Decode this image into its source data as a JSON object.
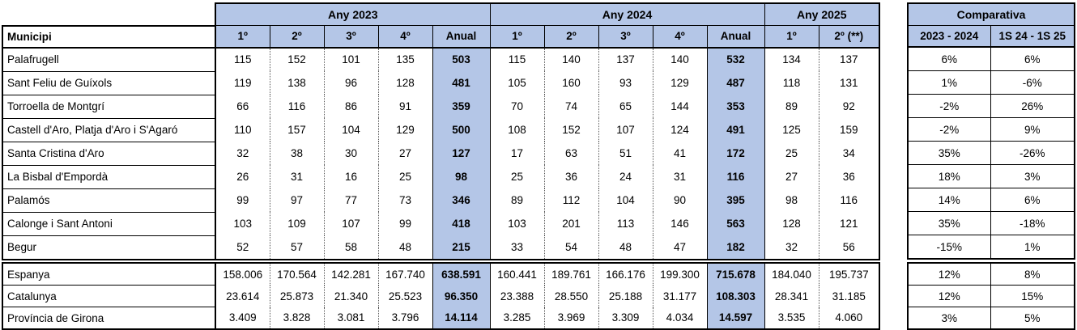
{
  "colors": {
    "header_bg": "#b4c6e7",
    "border": "#000000"
  },
  "header": {
    "municipi_label": "Municipi",
    "groups": [
      {
        "label": "Any 2023",
        "cols": [
          "1º",
          "2º",
          "3º",
          "4º",
          "Anual"
        ]
      },
      {
        "label": "Any 2024",
        "cols": [
          "1º",
          "2º",
          "3º",
          "4º",
          "Anual"
        ]
      },
      {
        "label": "Any 2025",
        "cols": [
          "1º",
          "2º (**)"
        ]
      }
    ],
    "comparativa": {
      "label": "Comparativa",
      "cols": [
        "2023 - 2024",
        "1S 24 - 1S 25"
      ]
    }
  },
  "municipalities": [
    {
      "name": "Palafrugell",
      "y2023": [
        "115",
        "152",
        "101",
        "135"
      ],
      "anual2023": "503",
      "y2024": [
        "115",
        "140",
        "137",
        "140"
      ],
      "anual2024": "532",
      "y2025": [
        "134",
        "137"
      ],
      "comp": [
        "6%",
        "6%"
      ]
    },
    {
      "name": "Sant Feliu de Guíxols",
      "y2023": [
        "119",
        "138",
        "96",
        "128"
      ],
      "anual2023": "481",
      "y2024": [
        "105",
        "160",
        "93",
        "129"
      ],
      "anual2024": "487",
      "y2025": [
        "118",
        "131"
      ],
      "comp": [
        "1%",
        "-6%"
      ]
    },
    {
      "name": "Torroella de Montgrí",
      "y2023": [
        "66",
        "116",
        "86",
        "91"
      ],
      "anual2023": "359",
      "y2024": [
        "70",
        "74",
        "65",
        "144"
      ],
      "anual2024": "353",
      "y2025": [
        "89",
        "92"
      ],
      "comp": [
        "-2%",
        "26%"
      ]
    },
    {
      "name": "Castell d'Aro, Platja d'Aro i S'Agaró",
      "y2023": [
        "110",
        "157",
        "104",
        "129"
      ],
      "anual2023": "500",
      "y2024": [
        "108",
        "152",
        "107",
        "124"
      ],
      "anual2024": "491",
      "y2025": [
        "125",
        "159"
      ],
      "comp": [
        "-2%",
        "9%"
      ]
    },
    {
      "name": "Santa Cristina d'Aro",
      "y2023": [
        "32",
        "38",
        "30",
        "27"
      ],
      "anual2023": "127",
      "y2024": [
        "17",
        "63",
        "51",
        "41"
      ],
      "anual2024": "172",
      "y2025": [
        "25",
        "34"
      ],
      "comp": [
        "35%",
        "-26%"
      ]
    },
    {
      "name": "La Bisbal d'Empordà",
      "y2023": [
        "26",
        "31",
        "16",
        "25"
      ],
      "anual2023": "98",
      "y2024": [
        "25",
        "36",
        "24",
        "31"
      ],
      "anual2024": "116",
      "y2025": [
        "27",
        "36"
      ],
      "comp": [
        "18%",
        "3%"
      ]
    },
    {
      "name": "Palamós",
      "y2023": [
        "99",
        "97",
        "77",
        "73"
      ],
      "anual2023": "346",
      "y2024": [
        "89",
        "112",
        "104",
        "90"
      ],
      "anual2024": "395",
      "y2025": [
        "98",
        "116"
      ],
      "comp": [
        "14%",
        "6%"
      ]
    },
    {
      "name": "Calonge i Sant Antoni",
      "y2023": [
        "103",
        "109",
        "107",
        "99"
      ],
      "anual2023": "418",
      "y2024": [
        "103",
        "201",
        "113",
        "146"
      ],
      "anual2024": "563",
      "y2025": [
        "128",
        "121"
      ],
      "comp": [
        "35%",
        "-18%"
      ]
    },
    {
      "name": "Begur",
      "y2023": [
        "52",
        "57",
        "58",
        "48"
      ],
      "anual2023": "215",
      "y2024": [
        "33",
        "54",
        "48",
        "47"
      ],
      "anual2024": "182",
      "y2025": [
        "32",
        "56"
      ],
      "comp": [
        "-15%",
        "1%"
      ]
    }
  ],
  "regions": [
    {
      "name": "Espanya",
      "y2023": [
        "158.006",
        "170.564",
        "142.281",
        "167.740"
      ],
      "anual2023": "638.591",
      "y2024": [
        "160.441",
        "189.761",
        "166.176",
        "199.300"
      ],
      "anual2024": "715.678",
      "y2025": [
        "184.040",
        "195.737"
      ],
      "comp": [
        "12%",
        "8%"
      ]
    },
    {
      "name": "Catalunya",
      "y2023": [
        "23.614",
        "25.873",
        "21.340",
        "25.523"
      ],
      "anual2023": "96.350",
      "y2024": [
        "23.388",
        "28.550",
        "25.188",
        "31.177"
      ],
      "anual2024": "108.303",
      "y2025": [
        "28.341",
        "31.185"
      ],
      "comp": [
        "12%",
        "15%"
      ]
    },
    {
      "name": "Província de Girona",
      "y2023": [
        "3.409",
        "3.828",
        "3.081",
        "3.796"
      ],
      "anual2023": "14.114",
      "y2024": [
        "3.285",
        "3.969",
        "3.309",
        "4.034"
      ],
      "anual2024": "14.597",
      "y2025": [
        "3.535",
        "4.060"
      ],
      "comp": [
        "3%",
        "5%"
      ]
    }
  ]
}
